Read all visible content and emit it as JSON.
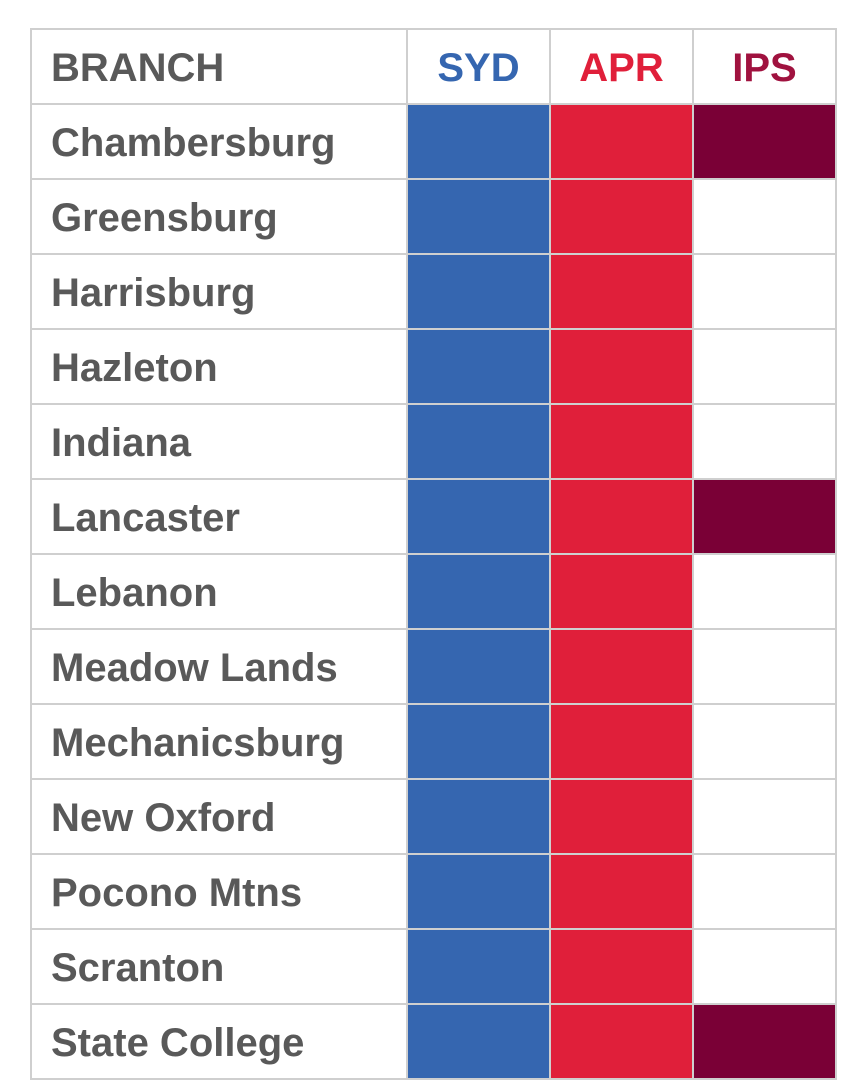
{
  "colors": {
    "syd": "#3566b0",
    "apr": "#e01f3a",
    "ips": "#7a0036",
    "empty": "#ffffff",
    "text": "#595959",
    "grid": "#cfcfcf"
  },
  "chart_data": {
    "type": "table",
    "columns": [
      {
        "key": "branch",
        "label": "BRANCH",
        "color": "#595959"
      },
      {
        "key": "syd",
        "label": "SYD",
        "color": "#3566b0"
      },
      {
        "key": "apr",
        "label": "APR",
        "color": "#e01f3a"
      },
      {
        "key": "ips",
        "label": "IPS",
        "color": "#a0123f"
      }
    ],
    "rows": [
      {
        "branch": "Chambersburg",
        "syd": true,
        "apr": true,
        "ips": true
      },
      {
        "branch": "Greensburg",
        "syd": true,
        "apr": true,
        "ips": false
      },
      {
        "branch": "Harrisburg",
        "syd": true,
        "apr": true,
        "ips": false
      },
      {
        "branch": "Hazleton",
        "syd": true,
        "apr": true,
        "ips": false
      },
      {
        "branch": "Indiana",
        "syd": true,
        "apr": true,
        "ips": false
      },
      {
        "branch": "Lancaster",
        "syd": true,
        "apr": true,
        "ips": true
      },
      {
        "branch": "Lebanon",
        "syd": true,
        "apr": true,
        "ips": false
      },
      {
        "branch": "Meadow Lands",
        "syd": true,
        "apr": true,
        "ips": false
      },
      {
        "branch": "Mechanicsburg",
        "syd": true,
        "apr": true,
        "ips": false
      },
      {
        "branch": "New Oxford",
        "syd": true,
        "apr": true,
        "ips": false
      },
      {
        "branch": "Pocono Mtns",
        "syd": true,
        "apr": true,
        "ips": false
      },
      {
        "branch": "Scranton",
        "syd": true,
        "apr": true,
        "ips": false
      },
      {
        "branch": "State College",
        "syd": true,
        "apr": true,
        "ips": true
      }
    ]
  }
}
